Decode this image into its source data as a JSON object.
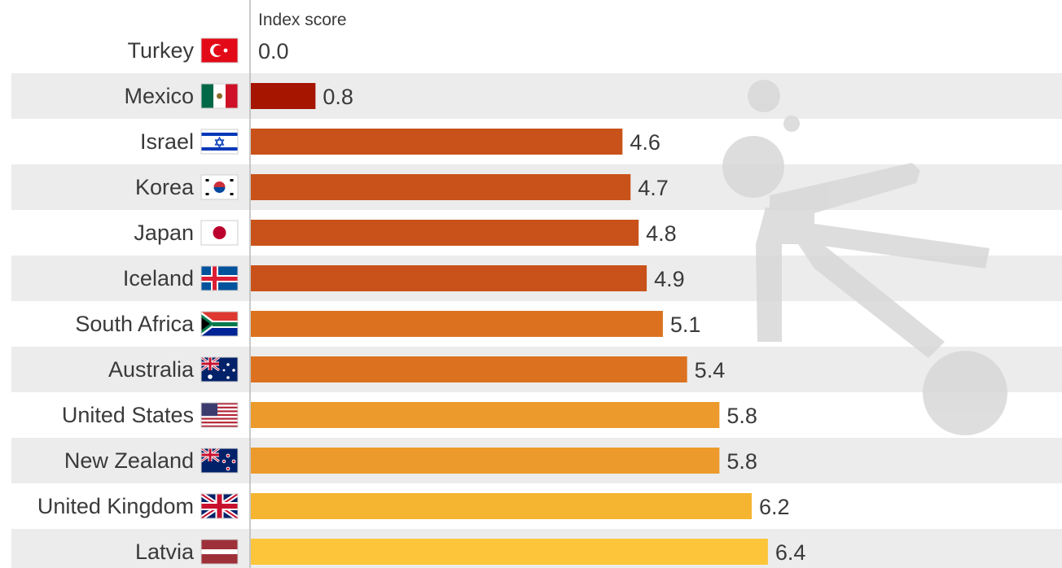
{
  "chart_data": {
    "type": "bar",
    "orientation": "horizontal",
    "axis_title": "Index score",
    "categories": [
      "Turkey",
      "Mexico",
      "Israel",
      "Korea",
      "Japan",
      "Iceland",
      "South Africa",
      "Australia",
      "United States",
      "New Zealand",
      "United Kingdom",
      "Latvia"
    ],
    "values": [
      0.0,
      0.8,
      4.6,
      4.7,
      4.8,
      4.9,
      5.1,
      5.4,
      5.8,
      5.8,
      6.2,
      6.4
    ],
    "value_labels": [
      "0.0",
      "0.8",
      "4.6",
      "4.7",
      "4.8",
      "4.9",
      "5.1",
      "5.4",
      "5.8",
      "5.8",
      "6.2",
      "6.4"
    ],
    "bar_colors": [
      "#a51500",
      "#a51500",
      "#c9521a",
      "#c9521a",
      "#c9521a",
      "#c9521a",
      "#dc721f",
      "#dc721f",
      "#ec9a2b",
      "#ec9a2b",
      "#f5b531",
      "#fcc53a"
    ],
    "flags": [
      "turkey-flag",
      "mexico-flag",
      "israel-flag",
      "korea-flag",
      "japan-flag",
      "iceland-flag",
      "south-africa-flag",
      "australia-flag",
      "united-states-flag",
      "new-zealand-flag",
      "united-kingdom-flag",
      "latvia-flag"
    ],
    "row_band_color": "#ececec",
    "watermark_icon": "person-kicking-ball-icon",
    "grid": false,
    "legend": "none"
  }
}
